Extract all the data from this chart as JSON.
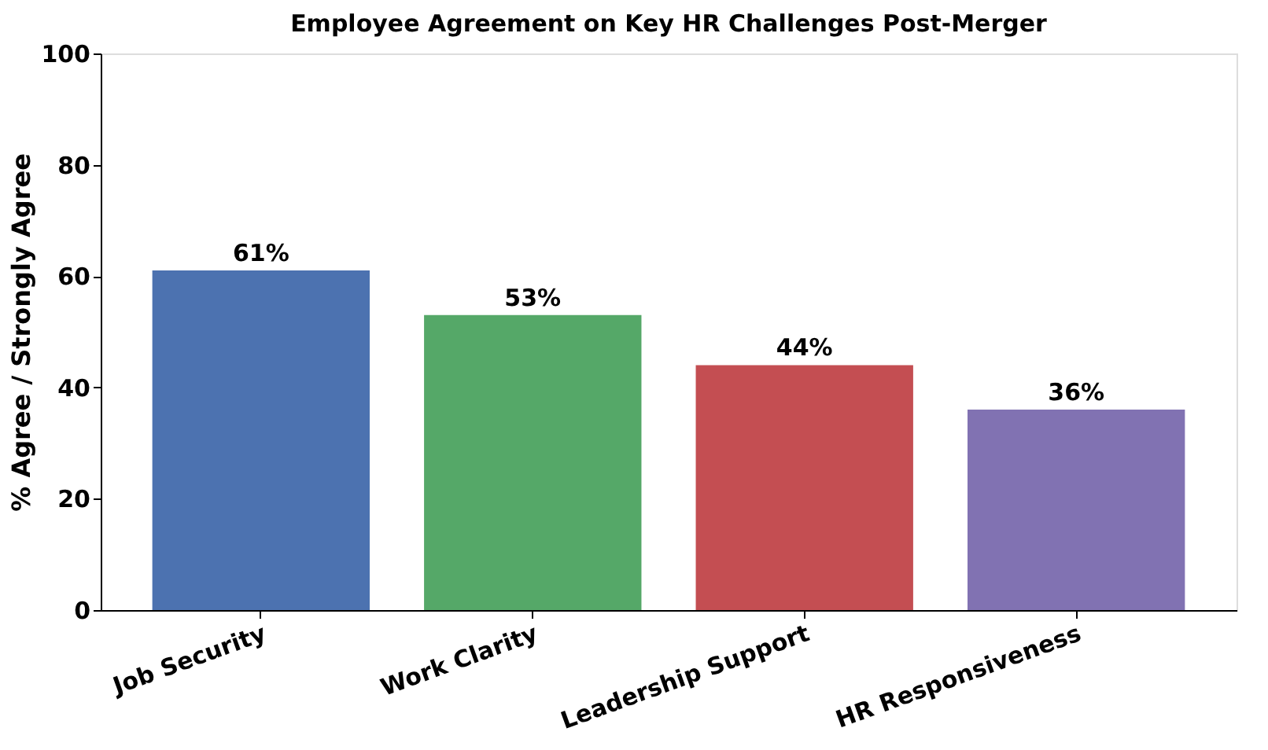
{
  "chart_data": {
    "type": "bar",
    "title": "Employee Agreement on Key HR Challenges Post-Merger",
    "ylabel": "% Agree / Strongly Agree",
    "categories": [
      "Job Security",
      "Work Clarity",
      "Leadership Support",
      "HR Responsiveness"
    ],
    "values": [
      61,
      53,
      44,
      36
    ],
    "colors": [
      "#4c72b0",
      "#55a868",
      "#c44e52",
      "#8172b2"
    ],
    "value_labels": [
      "61%",
      "53%",
      "44%",
      "36%"
    ],
    "ylim": [
      0,
      100
    ],
    "yticks": [
      0,
      20,
      40,
      60,
      80,
      100
    ],
    "grid": false
  }
}
